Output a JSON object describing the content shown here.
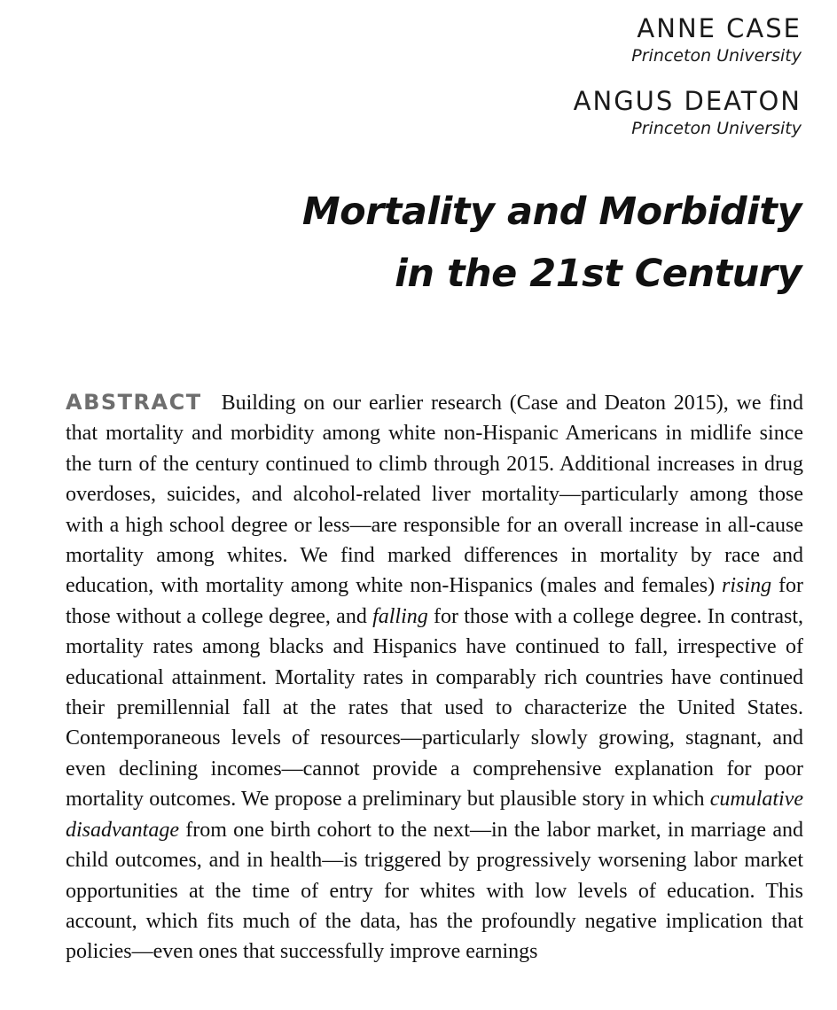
{
  "authors": [
    {
      "name": "ANNE CASE",
      "affiliation": "Princeton University"
    },
    {
      "name": "ANGUS DEATON",
      "affiliation": "Princeton University"
    }
  ],
  "title": {
    "line1": "Mortality and Morbidity",
    "line2": "in the 21st Century"
  },
  "abstract": {
    "label": "ABSTRACT",
    "seg1": "Building on our earlier research (Case and Deaton 2015), we find that mortality and morbidity among white non-Hispanic Americans in midlife since the turn of the century continued to climb through 2015. Additional increases in drug overdoses, suicides, and alcohol-related liver mortality—particularly among those with a high school degree or less—are responsible for an overall increase in all-cause mortality among whites. We find marked dif­ferences in mortality by race and education, with mortality among white non-Hispanics (males and females) ",
    "em1": "rising",
    "seg2": " for those without a college degree, and ",
    "em2": "falling",
    "seg3": " for those with a college degree. In contrast, mortality rates among blacks and Hispanics have continued to fall, irrespective of educational attainment. Mortality rates in comparably rich countries have continued their premillennial fall at the rates that used to characterize the United States. Contemporaneous levels of resources—particularly slowly growing, stagnant, and even declin­ing incomes—cannot provide a comprehensive explanation for poor mortality outcomes. We propose a preliminary but plausible story in which ",
    "em3": "cumulative disadvantage",
    "seg4": " from one birth cohort to the next—in the labor market, in mar­riage and child outcomes, and in health—is triggered by progressively worsen­ing labor market opportunities at the time of entry for whites with low levels of education. This account, which fits much of the data, has the profoundly nega­tive implication that policies—even ones that successfully improve earnings"
  }
}
